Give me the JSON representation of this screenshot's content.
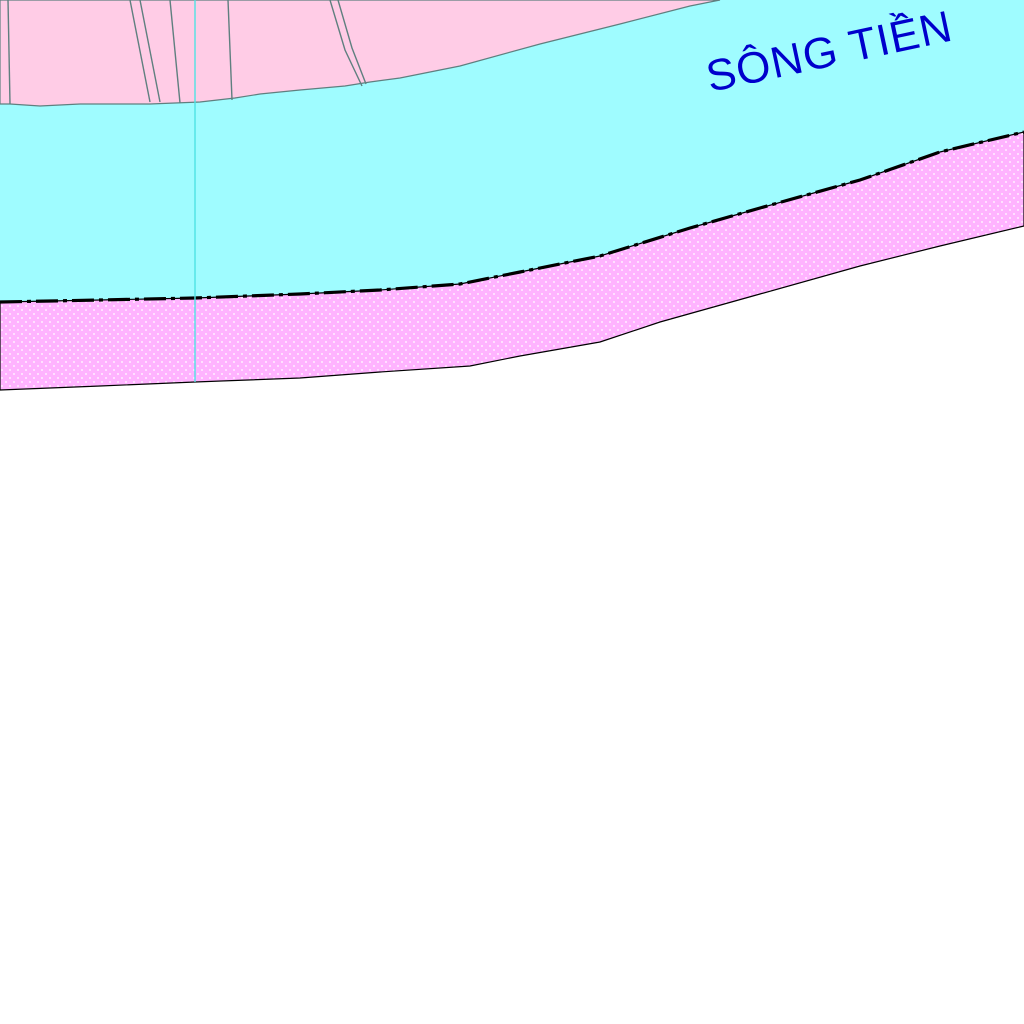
{
  "map": {
    "labels": {
      "river_name": "SÔNG TIỀN"
    },
    "colors": {
      "background": "#ffffff",
      "river_water": "#9ffcff",
      "residential_land": "#ffcce6",
      "riverbank_strip": "#ffb3ff",
      "riverbank_dots": "#ffffff",
      "parcel_outline": "#5f7f7f",
      "river_boundary": "#000000",
      "survey_line": "#4fe3e3",
      "river_label": "#0000cc"
    }
  }
}
